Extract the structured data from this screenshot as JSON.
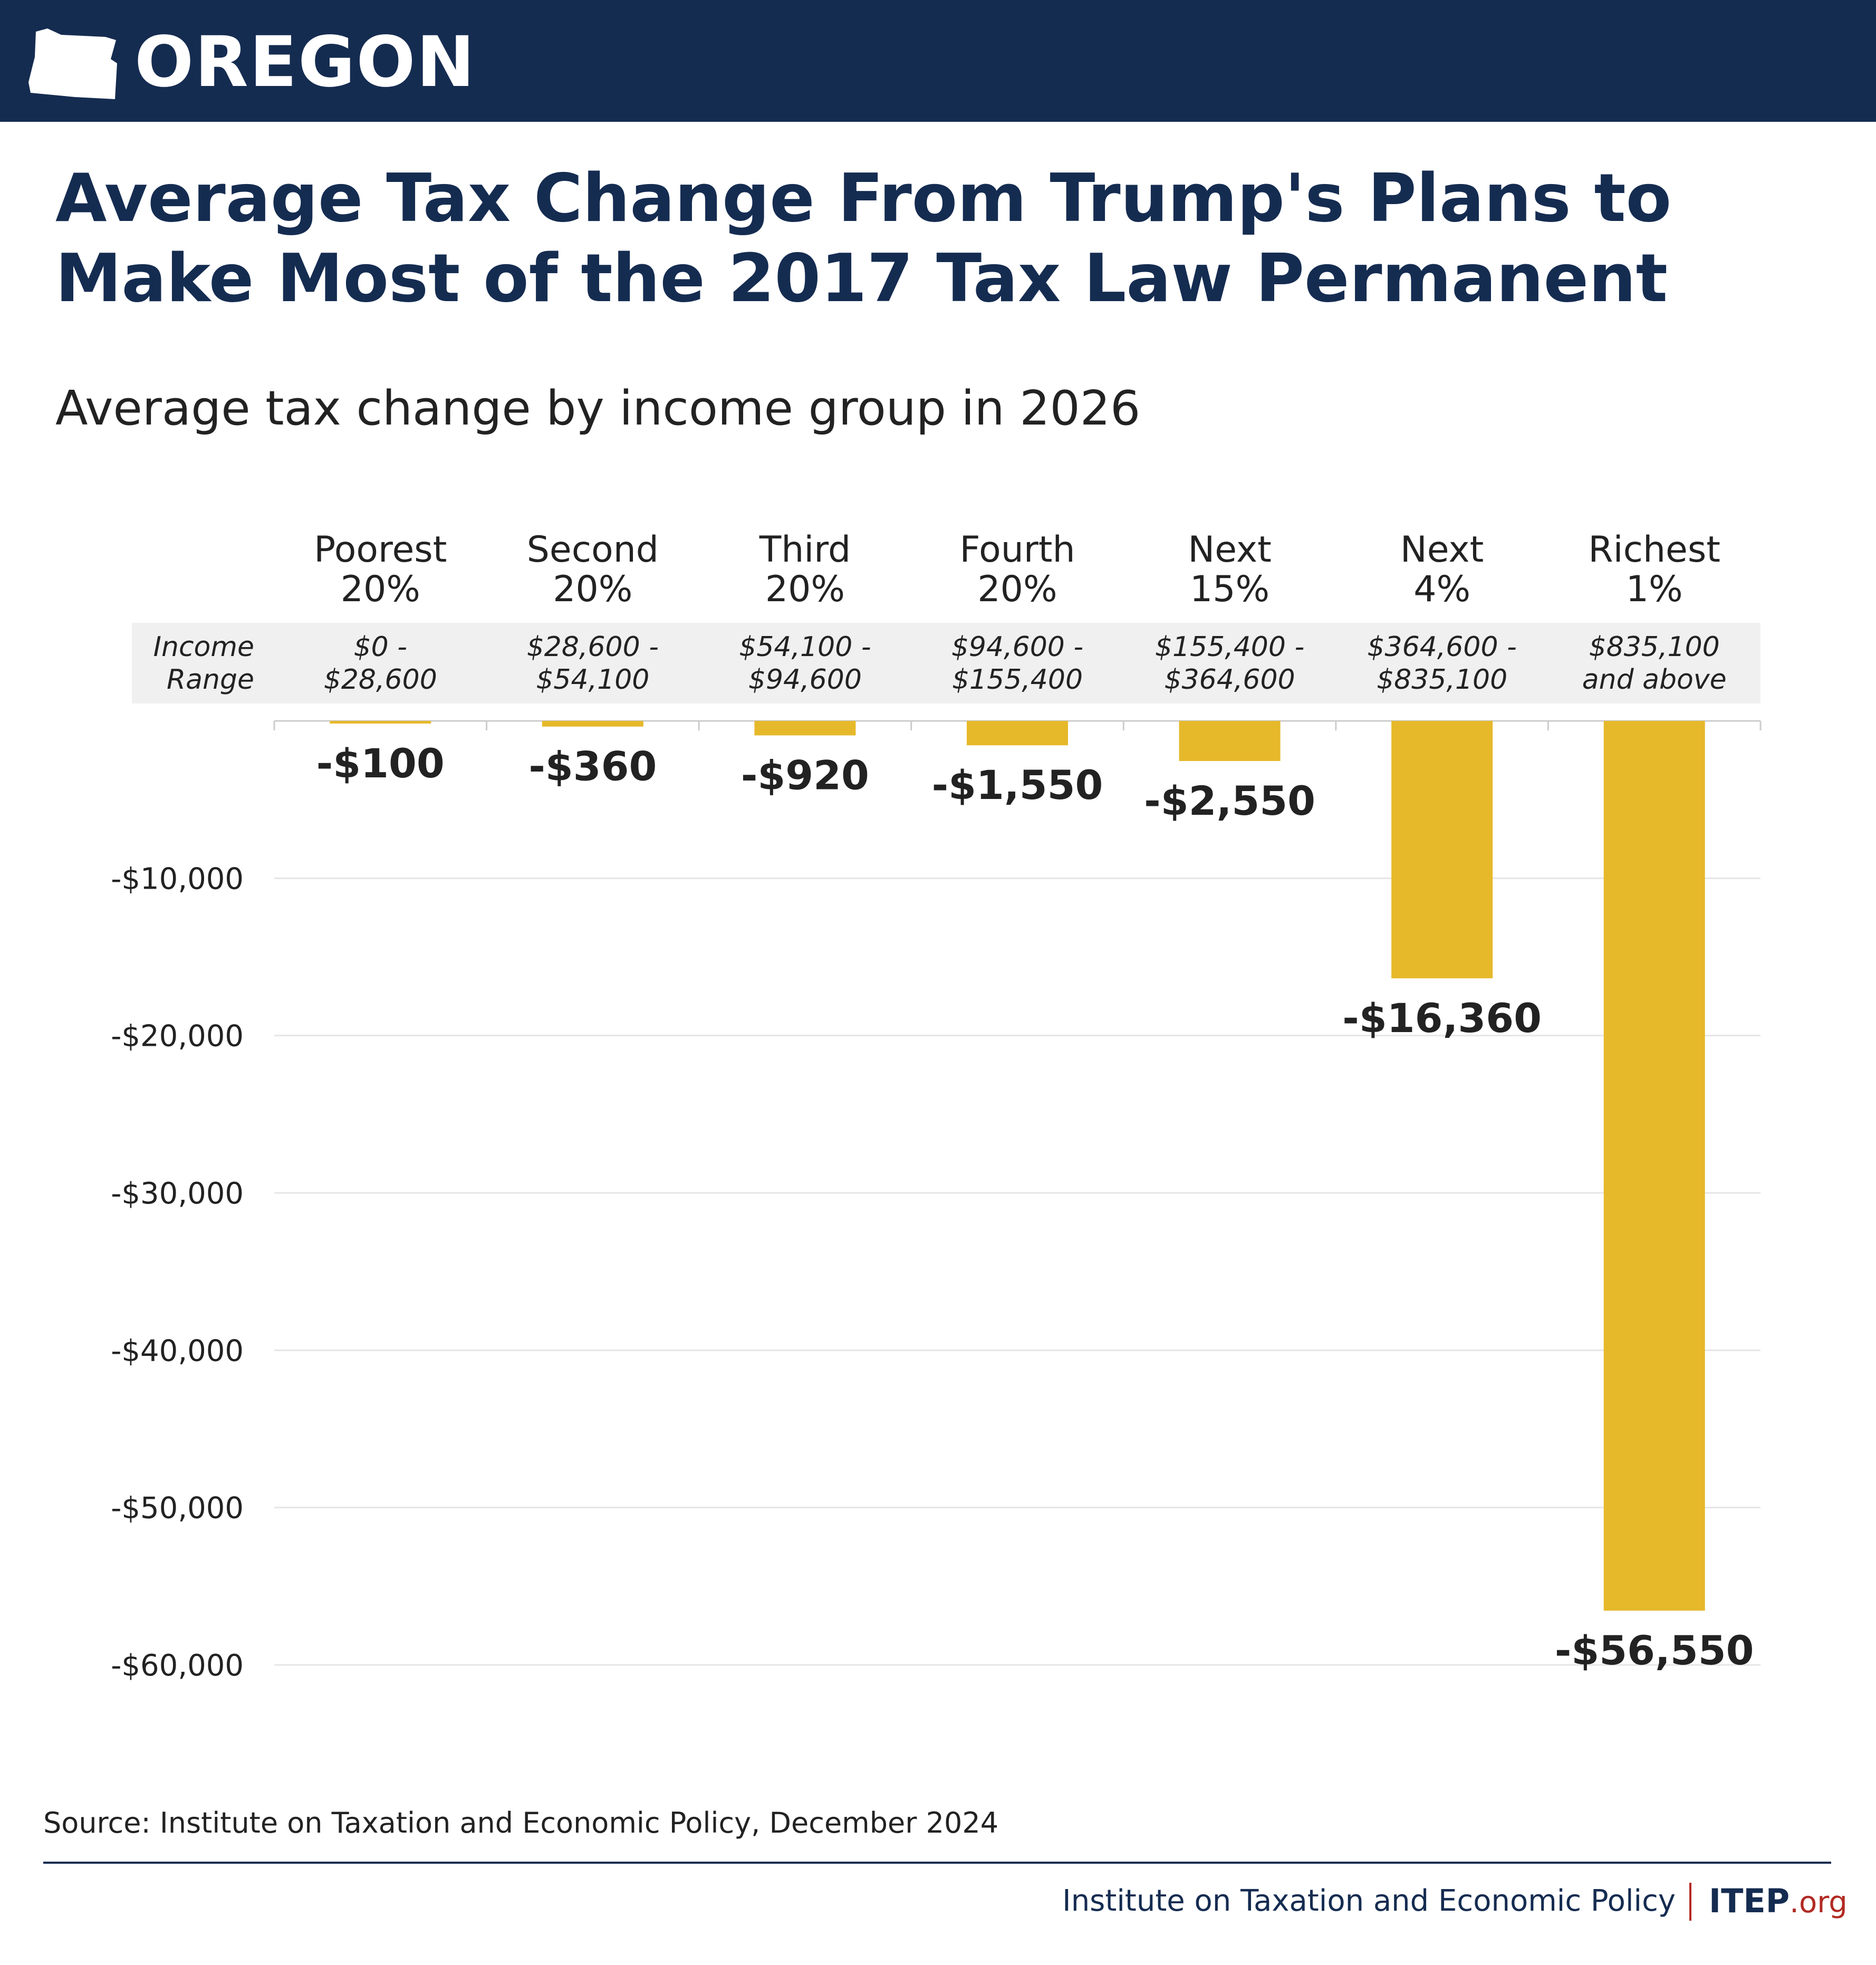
{
  "header": {
    "state_name": "OREGON"
  },
  "colors": {
    "navy": "#152c51",
    "bar": "#e6b92b",
    "band": "#f0f0f0",
    "grid": "#e6e6e6",
    "text": "#222222",
    "logo_org": "#b22a23"
  },
  "chart_data": {
    "type": "bar",
    "title": "Average Tax Change From Trump's Plans to Make Most of the 2017 Tax Law Permanent",
    "subtitle": "Average tax change by income group in 2026",
    "categories": [
      [
        "Poorest",
        "20%"
      ],
      [
        "Second",
        "20%"
      ],
      [
        "Third",
        "20%"
      ],
      [
        "Fourth",
        "20%"
      ],
      [
        "Next",
        "15%"
      ],
      [
        "Next",
        "4%"
      ],
      [
        "Richest",
        "1%"
      ]
    ],
    "income_range_label": [
      "Income",
      "Range"
    ],
    "income_ranges": [
      [
        "$0 -",
        "$28,600"
      ],
      [
        "$28,600 -",
        "$54,100"
      ],
      [
        "$54,100 -",
        "$94,600"
      ],
      [
        "$94,600 -",
        "$155,400"
      ],
      [
        "$155,400 -",
        "$364,600"
      ],
      [
        "$364,600 -",
        "$835,100"
      ],
      [
        "$835,100",
        "and above"
      ]
    ],
    "values": [
      -100,
      -360,
      -920,
      -1550,
      -2550,
      -16360,
      -56550
    ],
    "value_labels": [
      "-$100",
      "-$360",
      "-$920",
      "-$1,550",
      "-$2,550",
      "-$16,360",
      "-$56,550"
    ],
    "yticks": [
      -10000,
      -20000,
      -30000,
      -40000,
      -50000,
      -60000
    ],
    "ytick_labels": [
      "-$10,000",
      "-$20,000",
      "-$30,000",
      "-$40,000",
      "-$50,000",
      "-$60,000"
    ],
    "ylim": [
      -60000,
      0
    ],
    "grid": true
  },
  "footer": {
    "source": "Source: Institute on Taxation and Economic Policy, December 2024",
    "org_name": "Institute on Taxation and Economic Policy",
    "logo_main": "ITEP",
    "logo_suffix": ".org"
  }
}
